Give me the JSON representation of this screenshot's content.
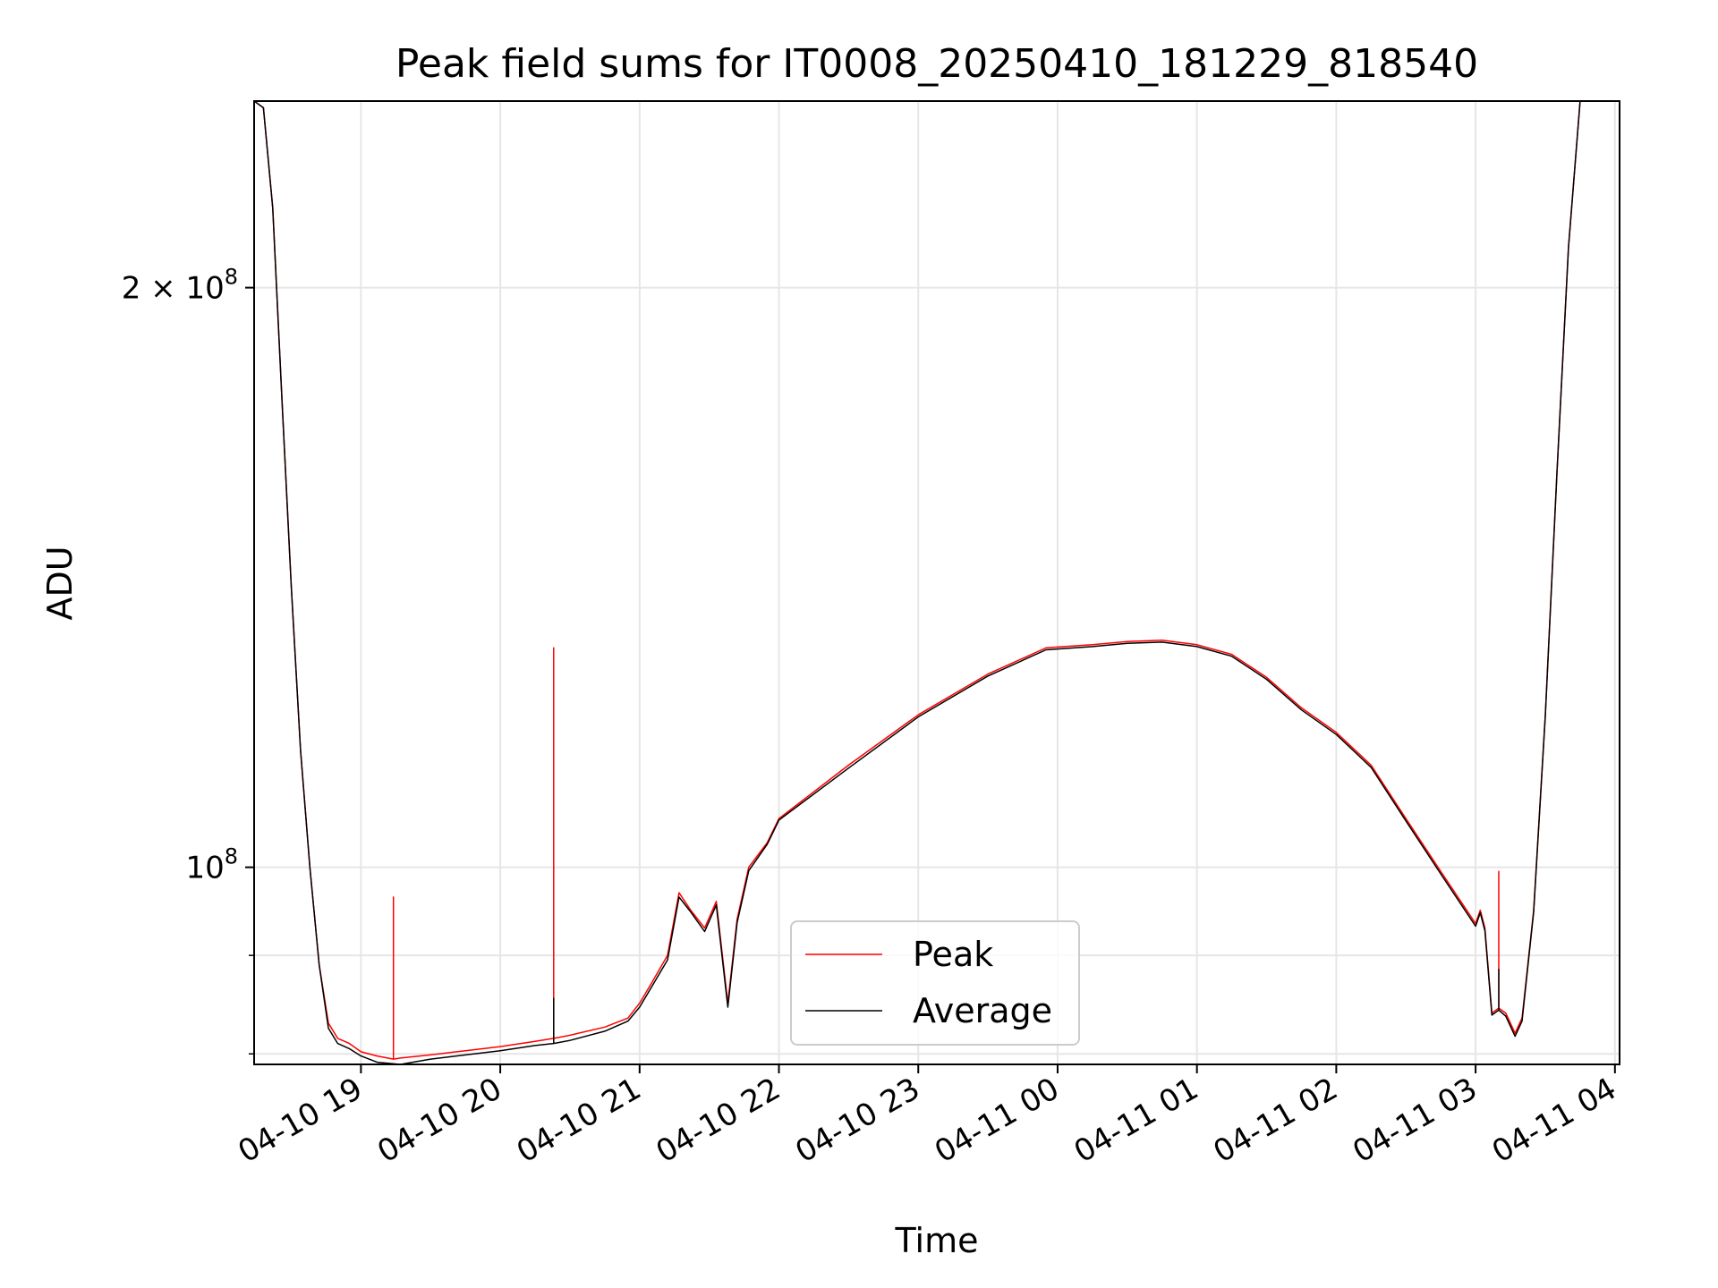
{
  "chart_data": {
    "type": "line",
    "title": "Peak field sums for IT0008_20250410_181229_818540",
    "xlabel": "Time",
    "ylabel": "ADU",
    "y_scale": "log",
    "xlim": [
      "2025-04-10 18:14",
      "2025-04-11 04:02"
    ],
    "ylim": [
      79000000,
      250000000
    ],
    "grid": true,
    "legend_position": "lower center",
    "colors": {
      "Peak": "#ff0000",
      "Average": "#000000"
    },
    "x_ticks": [
      "04-10 19",
      "04-10 20",
      "04-10 21",
      "04-10 22",
      "04-10 23",
      "04-11 00",
      "04-11 01",
      "04-11 02",
      "04-11 03",
      "04-11 04"
    ],
    "x_tick_values": [
      "2025-04-10 19:00",
      "2025-04-10 20:00",
      "2025-04-10 21:00",
      "2025-04-10 22:00",
      "2025-04-10 23:00",
      "2025-04-11 00:00",
      "2025-04-11 01:00",
      "2025-04-11 02:00",
      "2025-04-11 03:00",
      "2025-04-11 04:00"
    ],
    "y_ticks": [
      {
        "value": 100000000,
        "base": "10",
        "exp": "8"
      },
      {
        "value": 200000000,
        "base": "2 × 10",
        "exp": "8"
      }
    ],
    "y_minor_ticks": [
      80000000,
      90000000
    ],
    "series": [
      {
        "name": "Peak",
        "x": [
          "2025-04-10 18:14",
          "2025-04-10 18:18",
          "2025-04-10 18:22",
          "2025-04-10 18:26",
          "2025-04-10 18:30",
          "2025-04-10 18:34",
          "2025-04-10 18:38",
          "2025-04-10 18:42",
          "2025-04-10 18:46",
          "2025-04-10 18:50",
          "2025-04-10 18:55",
          "2025-04-10 19:00",
          "2025-04-10 19:07",
          "2025-04-10 19:14",
          "2025-04-10 19:14",
          "2025-04-10 19:14",
          "2025-04-10 19:17",
          "2025-04-10 19:30",
          "2025-04-10 19:45",
          "2025-04-10 20:00",
          "2025-04-10 20:15",
          "2025-04-10 20:23",
          "2025-04-10 20:23",
          "2025-04-10 20:23",
          "2025-04-10 20:30",
          "2025-04-10 20:45",
          "2025-04-10 20:55",
          "2025-04-10 21:00",
          "2025-04-10 21:05",
          "2025-04-10 21:12",
          "2025-04-10 21:17",
          "2025-04-10 21:22",
          "2025-04-10 21:28",
          "2025-04-10 21:33",
          "2025-04-10 21:38",
          "2025-04-10 21:42",
          "2025-04-10 21:47",
          "2025-04-10 21:55",
          "2025-04-10 22:00",
          "2025-04-10 22:30",
          "2025-04-10 23:00",
          "2025-04-10 23:30",
          "2025-04-10 23:55",
          "2025-04-11 00:15",
          "2025-04-11 00:30",
          "2025-04-11 00:45",
          "2025-04-11 01:00",
          "2025-04-11 01:15",
          "2025-04-11 01:30",
          "2025-04-11 01:45",
          "2025-04-11 02:00",
          "2025-04-11 02:15",
          "2025-04-11 02:30",
          "2025-04-11 02:45",
          "2025-04-11 03:00",
          "2025-04-11 03:02",
          "2025-04-11 03:04",
          "2025-04-11 03:07",
          "2025-04-11 03:10",
          "2025-04-11 03:10",
          "2025-04-11 03:10",
          "2025-04-11 03:13",
          "2025-04-11 03:17",
          "2025-04-11 03:20",
          "2025-04-11 03:25",
          "2025-04-11 03:30",
          "2025-04-11 03:35",
          "2025-04-11 03:40",
          "2025-04-11 03:45",
          "2025-04-11 03:48",
          "2025-04-11 03:50"
        ],
        "y": [
          250000000,
          248000000,
          220000000,
          175000000,
          140000000,
          115000000,
          100000000,
          89000000,
          83000000,
          81500000,
          81000000,
          80200000,
          79800000,
          79500000,
          96500000,
          79500000,
          79600000,
          79900000,
          80300000,
          80700000,
          81200000,
          81500000,
          130000000,
          81500000,
          81800000,
          82600000,
          83500000,
          85000000,
          87000000,
          90000000,
          97000000,
          95000000,
          93000000,
          96000000,
          85000000,
          94000000,
          100000000,
          103000000,
          106000000,
          113000000,
          120000000,
          126000000,
          130000000,
          130500000,
          131000000,
          131200000,
          130500000,
          129000000,
          125500000,
          121000000,
          117500000,
          113000000,
          106000000,
          99500000,
          93500000,
          95000000,
          93000000,
          84000000,
          84500000,
          99500000,
          84500000,
          84000000,
          82000000,
          83500000,
          95000000,
          120000000,
          160000000,
          210000000,
          250000000,
          250000000,
          250000000
        ]
      },
      {
        "name": "Average",
        "x": [
          "2025-04-10 18:14",
          "2025-04-10 18:18",
          "2025-04-10 18:22",
          "2025-04-10 18:26",
          "2025-04-10 18:30",
          "2025-04-10 18:34",
          "2025-04-10 18:38",
          "2025-04-10 18:42",
          "2025-04-10 18:46",
          "2025-04-10 18:50",
          "2025-04-10 18:55",
          "2025-04-10 19:00",
          "2025-04-10 19:07",
          "2025-04-10 19:17",
          "2025-04-10 19:30",
          "2025-04-10 19:45",
          "2025-04-10 20:00",
          "2025-04-10 20:15",
          "2025-04-10 20:23",
          "2025-04-10 20:23",
          "2025-04-10 20:23",
          "2025-04-10 20:30",
          "2025-04-10 20:45",
          "2025-04-10 20:55",
          "2025-04-10 21:00",
          "2025-04-10 21:05",
          "2025-04-10 21:12",
          "2025-04-10 21:17",
          "2025-04-10 21:22",
          "2025-04-10 21:28",
          "2025-04-10 21:33",
          "2025-04-10 21:38",
          "2025-04-10 21:42",
          "2025-04-10 21:47",
          "2025-04-10 21:55",
          "2025-04-10 22:00",
          "2025-04-10 22:30",
          "2025-04-10 23:00",
          "2025-04-10 23:30",
          "2025-04-10 23:55",
          "2025-04-11 00:15",
          "2025-04-11 00:30",
          "2025-04-11 00:45",
          "2025-04-11 01:00",
          "2025-04-11 01:15",
          "2025-04-11 01:30",
          "2025-04-11 01:45",
          "2025-04-11 02:00",
          "2025-04-11 02:15",
          "2025-04-11 02:30",
          "2025-04-11 02:45",
          "2025-04-11 03:00",
          "2025-04-11 03:02",
          "2025-04-11 03:04",
          "2025-04-11 03:07",
          "2025-04-11 03:10",
          "2025-04-11 03:10",
          "2025-04-11 03:10",
          "2025-04-11 03:13",
          "2025-04-11 03:17",
          "2025-04-11 03:20",
          "2025-04-11 03:25",
          "2025-04-11 03:30",
          "2025-04-11 03:35",
          "2025-04-11 03:40",
          "2025-04-11 03:45",
          "2025-04-11 03:48",
          "2025-04-11 03:50"
        ],
        "y": [
          250000000,
          248000000,
          220000000,
          175000000,
          140000000,
          115000000,
          100000000,
          89000000,
          82500000,
          81000000,
          80500000,
          79800000,
          79200000,
          79000000,
          79500000,
          79900000,
          80300000,
          80800000,
          81000000,
          85500000,
          81000000,
          81300000,
          82200000,
          83200000,
          84600000,
          86600000,
          89500000,
          96500000,
          94800000,
          92600000,
          95600000,
          84600000,
          93600000,
          99600000,
          102800000,
          105800000,
          112600000,
          119700000,
          125700000,
          129700000,
          130200000,
          130700000,
          130900000,
          130200000,
          128700000,
          125200000,
          120700000,
          117200000,
          112700000,
          105700000,
          99200000,
          93200000,
          94700000,
          92700000,
          83800000,
          84300000,
          88500000,
          84300000,
          83700000,
          81700000,
          83200000,
          94800000,
          119800000,
          159800000,
          209800000,
          250000000,
          250000000,
          250000000
        ]
      }
    ]
  }
}
